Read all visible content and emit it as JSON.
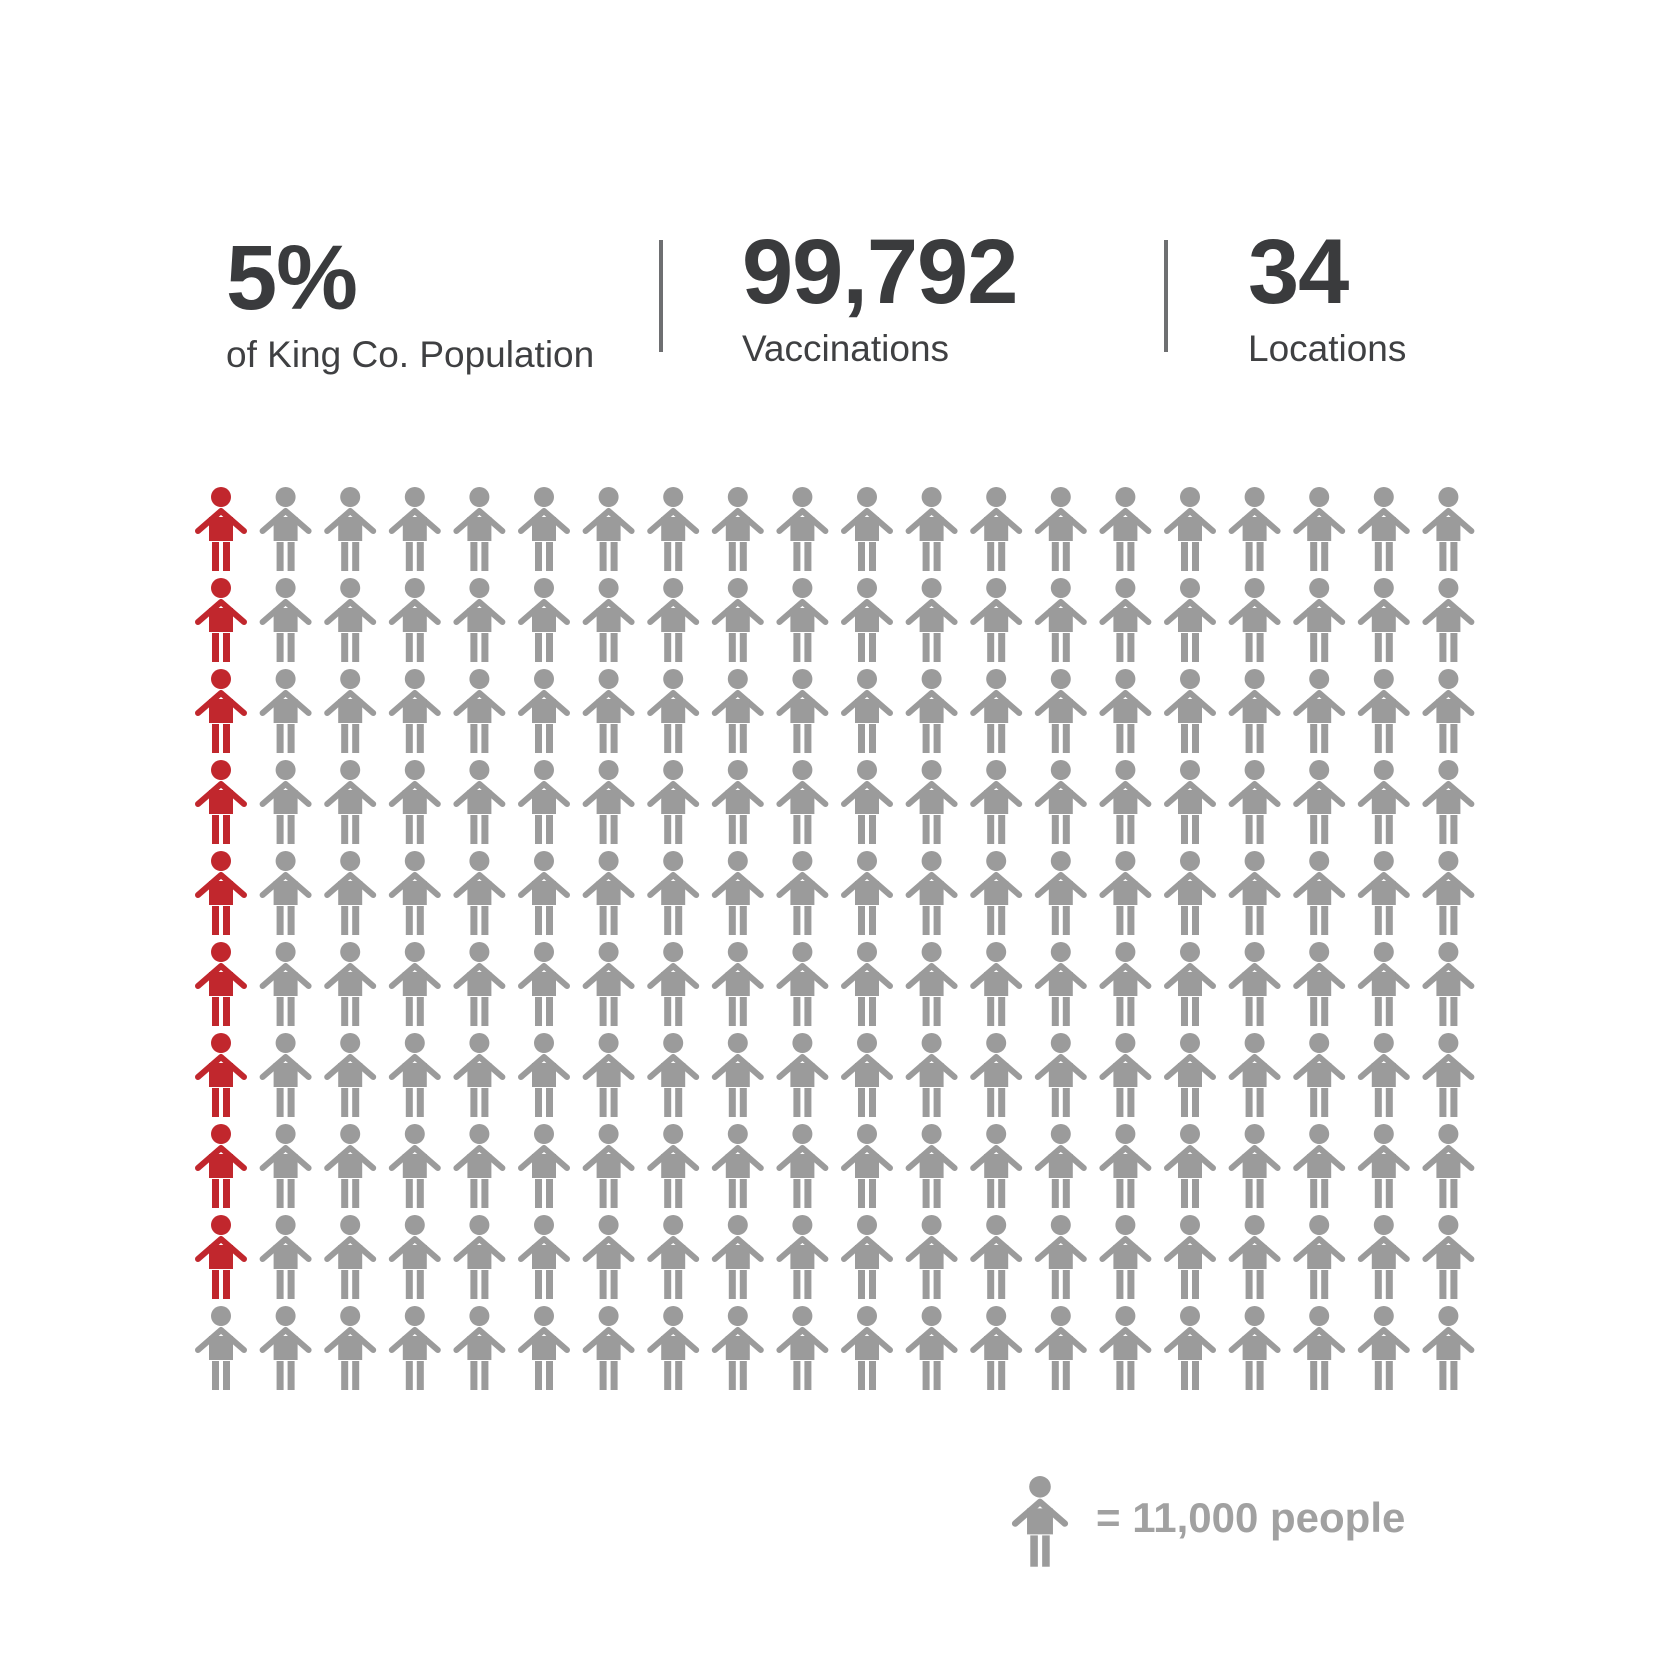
{
  "stats": [
    {
      "value": "5%",
      "label": "of King Co. Population"
    },
    {
      "value": "99,792",
      "label": "Vaccinations"
    },
    {
      "value": "34",
      "label": "Locations"
    }
  ],
  "colors": {
    "highlight": "#c1272d",
    "base": "#9b9b9b",
    "text": "#3a3b3d",
    "legend_text": "#a1a1a1"
  },
  "chart_data": {
    "type": "pictogram",
    "rows": 10,
    "columns": 20,
    "total_icons": 200,
    "highlighted_icons": 9,
    "highlight_fill_order": "first column, top to bottom",
    "people_per_icon": 11000,
    "icon": "person-icon"
  },
  "legend": {
    "text": "= 11,000 people"
  }
}
